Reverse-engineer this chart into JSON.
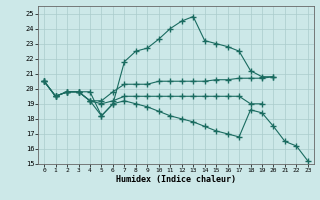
{
  "xlabel": "Humidex (Indice chaleur)",
  "xlim": [
    -0.5,
    23.5
  ],
  "ylim": [
    15,
    25.5
  ],
  "yticks": [
    15,
    16,
    17,
    18,
    19,
    20,
    21,
    22,
    23,
    24,
    25
  ],
  "xticks": [
    0,
    1,
    2,
    3,
    4,
    5,
    6,
    7,
    8,
    9,
    10,
    11,
    12,
    13,
    14,
    15,
    16,
    17,
    18,
    19,
    20,
    21,
    22,
    23
  ],
  "background_color": "#cce8e8",
  "grid_color": "#aacccc",
  "line_color": "#1a6b60",
  "lines": [
    {
      "x": [
        0,
        1,
        2,
        3,
        4,
        5,
        6,
        7,
        8,
        9,
        10,
        11,
        12,
        13,
        14,
        15,
        16,
        17,
        18,
        19,
        20
      ],
      "y": [
        20.5,
        19.5,
        19.8,
        19.8,
        19.8,
        18.2,
        19.0,
        21.8,
        22.5,
        22.7,
        23.3,
        24.0,
        24.5,
        24.8,
        23.2,
        23.0,
        22.8,
        22.5,
        21.2,
        20.8,
        20.8
      ]
    },
    {
      "x": [
        0,
        1,
        2,
        3,
        4,
        5,
        6,
        7,
        8,
        9,
        10,
        11,
        12,
        13,
        14,
        15,
        16,
        17,
        18,
        19,
        20
      ],
      "y": [
        20.5,
        19.5,
        19.8,
        19.8,
        19.2,
        19.2,
        19.8,
        20.3,
        20.3,
        20.3,
        20.5,
        20.5,
        20.5,
        20.5,
        20.5,
        20.6,
        20.6,
        20.7,
        20.7,
        20.7,
        20.8
      ]
    },
    {
      "x": [
        0,
        1,
        2,
        3,
        4,
        5,
        6,
        7,
        8,
        9,
        10,
        11,
        12,
        13,
        14,
        15,
        16,
        17,
        18,
        19
      ],
      "y": [
        20.5,
        19.5,
        19.8,
        19.8,
        19.2,
        19.0,
        19.2,
        19.5,
        19.5,
        19.5,
        19.5,
        19.5,
        19.5,
        19.5,
        19.5,
        19.5,
        19.5,
        19.5,
        19.0,
        19.0
      ]
    },
    {
      "x": [
        0,
        1,
        2,
        3,
        4,
        5,
        6,
        7,
        8,
        9,
        10,
        11,
        12,
        13,
        14,
        15,
        16,
        17,
        18,
        19,
        20,
        21,
        22,
        23
      ],
      "y": [
        20.5,
        19.5,
        19.8,
        19.8,
        19.2,
        18.2,
        19.0,
        19.2,
        19.0,
        18.8,
        18.5,
        18.2,
        18.0,
        17.8,
        17.5,
        17.2,
        17.0,
        16.8,
        18.6,
        18.4,
        17.5,
        16.5,
        16.2,
        15.2
      ]
    }
  ]
}
